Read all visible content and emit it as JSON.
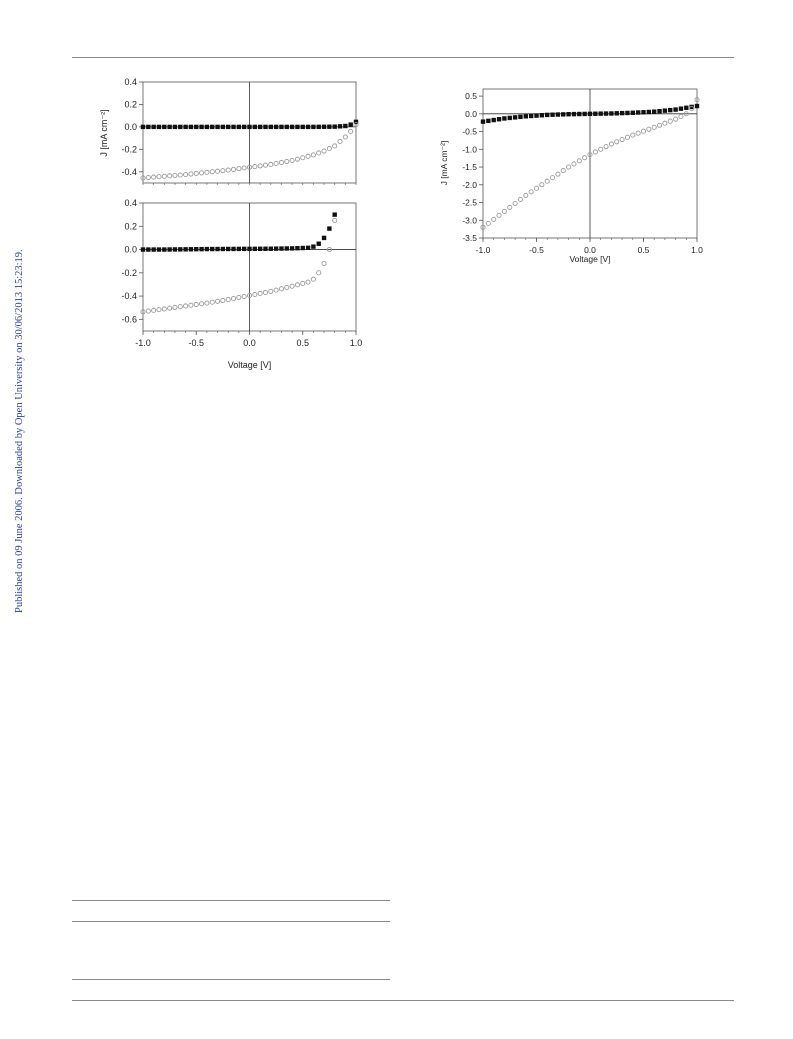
{
  "sidebar": {
    "text": "Published on 09 June 2006. Downloaded by Open University on 30/06/2013 15:23:19."
  },
  "colors": {
    "text_link": "#2a3fa8",
    "filled_marker": "#111111",
    "open_marker": "#9a9a9a",
    "axis": "#555555"
  },
  "chart_data": [
    {
      "type": "scatter",
      "title": "",
      "xlabel": "",
      "ylabel": "J [mA cm⁻²]",
      "xlim": [
        -1.0,
        1.0
      ],
      "ylim": [
        -0.5,
        0.4
      ],
      "x_ticks": [],
      "y_ticks": [
        0.4,
        0.2,
        0.0,
        -0.2,
        -0.4
      ],
      "y_tick_labels": [
        "0.4",
        "0.2",
        "0.0",
        "-0.2",
        "-0.4"
      ],
      "series": [
        {
          "marker": "filled-square",
          "x": [
            -1.0,
            -0.8,
            -0.6,
            -0.4,
            -0.2,
            0.0,
            0.2,
            0.4,
            0.6,
            0.8,
            0.9,
            0.95,
            1.0
          ],
          "y": [
            0.0,
            0.0,
            0.0,
            0.0,
            0.0,
            0.0,
            0.0,
            0.0,
            0.0,
            0.002,
            0.008,
            0.02,
            0.045
          ]
        },
        {
          "marker": "open-circle",
          "x": [
            -1.0,
            -0.8,
            -0.6,
            -0.4,
            -0.2,
            0.0,
            0.2,
            0.4,
            0.6,
            0.7,
            0.8,
            0.9,
            0.95,
            1.0
          ],
          "y": [
            -0.455,
            -0.44,
            -0.425,
            -0.405,
            -0.385,
            -0.36,
            -0.335,
            -0.3,
            -0.25,
            -0.215,
            -0.17,
            -0.09,
            -0.04,
            0.02
          ]
        }
      ]
    },
    {
      "type": "scatter",
      "title": "",
      "xlabel": "Voltage [V]",
      "ylabel": "",
      "xlim": [
        -1.0,
        1.0
      ],
      "ylim": [
        -0.7,
        0.4
      ],
      "x_ticks": [
        -1.0,
        -0.5,
        0.0,
        0.5,
        1.0
      ],
      "x_tick_labels": [
        "-1.0",
        "-0.5",
        "0.0",
        "0.5",
        "1.0"
      ],
      "y_ticks": [
        0.4,
        0.2,
        0.0,
        -0.2,
        -0.4,
        -0.6
      ],
      "y_tick_labels": [
        "0.4",
        "0.2",
        "0.0",
        "-0.2",
        "-0.4",
        "-0.6"
      ],
      "series": [
        {
          "marker": "filled-square",
          "x": [
            -1.0,
            -0.8,
            -0.6,
            -0.4,
            -0.2,
            0.0,
            0.2,
            0.4,
            0.55,
            0.6,
            0.65,
            0.7,
            0.75,
            0.8
          ],
          "y": [
            0.0,
            0.0,
            0.002,
            0.004,
            0.005,
            0.006,
            0.007,
            0.01,
            0.015,
            0.025,
            0.05,
            0.1,
            0.18,
            0.3
          ]
        },
        {
          "marker": "open-circle",
          "x": [
            -1.0,
            -0.8,
            -0.6,
            -0.4,
            -0.2,
            0.0,
            0.2,
            0.4,
            0.55,
            0.6,
            0.65,
            0.7,
            0.75,
            0.8
          ],
          "y": [
            -0.535,
            -0.51,
            -0.485,
            -0.46,
            -0.43,
            -0.395,
            -0.36,
            -0.315,
            -0.28,
            -0.255,
            -0.2,
            -0.12,
            0.0,
            0.25
          ]
        }
      ]
    },
    {
      "type": "scatter",
      "title": "",
      "xlabel": "Voltage [V]",
      "ylabel": "J [mA cm⁻²]",
      "xlim": [
        -1.0,
        1.0
      ],
      "ylim": [
        -3.5,
        0.7
      ],
      "x_ticks": [
        -1.0,
        -0.5,
        0.0,
        0.5,
        1.0
      ],
      "x_tick_labels": [
        "-1.0",
        "-0.5",
        "0.0",
        "0.5",
        "1.0"
      ],
      "y_ticks": [
        0.5,
        0.0,
        -0.5,
        -1.0,
        -1.5,
        -2.0,
        -2.5,
        -3.0,
        -3.5
      ],
      "y_tick_labels": [
        "0.5",
        "0.0",
        "-0.5",
        "-1.0",
        "-1.5",
        "-2.0",
        "-2.5",
        "-3.0",
        "-3.5"
      ],
      "series": [
        {
          "marker": "filled-square",
          "x": [
            -1.0,
            -0.8,
            -0.6,
            -0.4,
            -0.2,
            0.0,
            0.2,
            0.4,
            0.6,
            0.8,
            0.9,
            1.0
          ],
          "y": [
            -0.22,
            -0.13,
            -0.07,
            -0.03,
            -0.01,
            0.0,
            0.01,
            0.03,
            0.06,
            0.12,
            0.17,
            0.22
          ]
        },
        {
          "marker": "open-circle",
          "x": [
            -1.0,
            -0.8,
            -0.6,
            -0.4,
            -0.2,
            0.0,
            0.2,
            0.4,
            0.6,
            0.8,
            0.9,
            0.95,
            1.0
          ],
          "y": [
            -3.2,
            -2.75,
            -2.3,
            -1.9,
            -1.5,
            -1.15,
            -0.85,
            -0.6,
            -0.38,
            -0.15,
            0.0,
            0.15,
            0.4
          ]
        }
      ]
    }
  ]
}
